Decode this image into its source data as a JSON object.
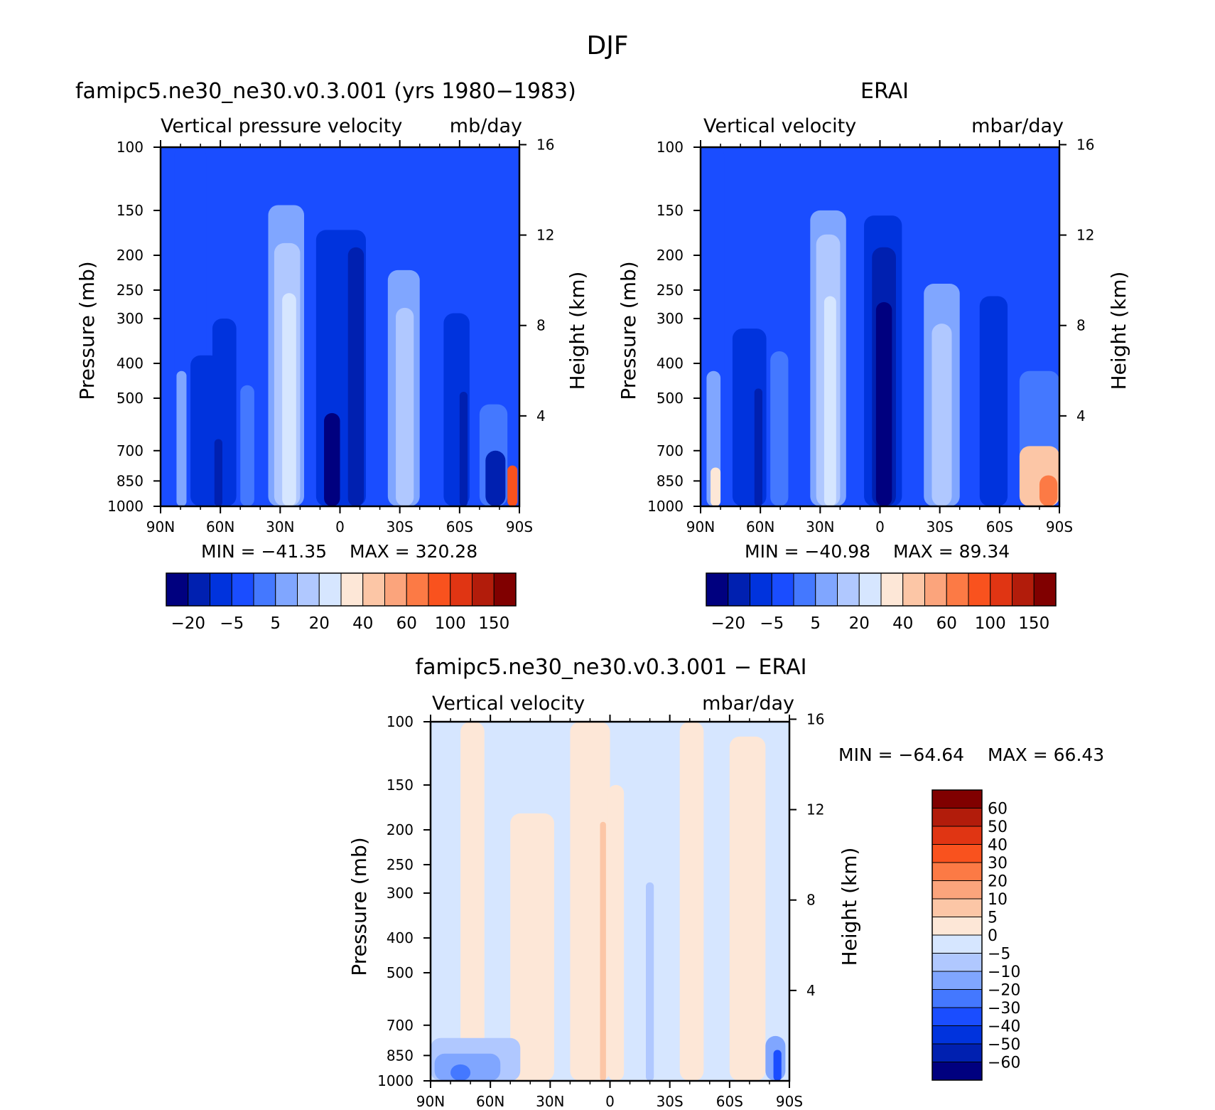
{
  "page_title": "DJF",
  "palette": {
    "blues": [
      "#00007f",
      "#0020b0",
      "#0033dd",
      "#1a4dff",
      "#4478ff",
      "#80a6ff",
      "#b0c8ff",
      "#d6e6ff"
    ],
    "reds": [
      "#fde7d7",
      "#fcc6a6",
      "#fba47c",
      "#fc7a45",
      "#f9521e",
      "#e03513",
      "#b21c0b",
      "#800000"
    ]
  },
  "chart_data": [
    {
      "type": "heatmap",
      "title": "famipc5.ne30_ne30.v0.3.001 (yrs 1980−1983)",
      "variable_label": "Vertical pressure velocity",
      "units_label": "mb/day",
      "ylabel": "Pressure (mb)",
      "y2label": "Height (km)",
      "x_ticks": [
        "90N",
        "60N",
        "30N",
        "0",
        "30S",
        "60S",
        "90S"
      ],
      "y_ticks": [
        "100",
        "150",
        "200",
        "250",
        "300",
        "400",
        "500",
        "700",
        "850",
        "1000"
      ],
      "y2_ticks": [
        "16",
        "12",
        "8",
        "4"
      ],
      "xlim": [
        "90N",
        "90S"
      ],
      "ylim": [
        1000,
        100
      ],
      "y_scale": "log",
      "min_label": "MIN = −41.35",
      "max_label": "MAX = 320.28",
      "colorbar": {
        "orientation": "horizontal",
        "labels": [
          "−20",
          "−5",
          "5",
          "20",
          "40",
          "60",
          "100",
          "150"
        ]
      },
      "bands": [
        {
          "lat": [
            90,
            83
          ],
          "p_top": 100,
          "level": 3
        },
        {
          "lat": [
            83,
            67
          ],
          "p_top": 100,
          "level": 3
        },
        {
          "lat": [
            82,
            77
          ],
          "p_top": 420,
          "level": 5
        },
        {
          "lat": [
            75,
            60
          ],
          "p_top": 380,
          "level": 2
        },
        {
          "lat": [
            64,
            52
          ],
          "p_top": 300,
          "level": 2
        },
        {
          "lat": [
            63,
            59
          ],
          "p_top": 650,
          "level": 1
        },
        {
          "lat": [
            50,
            43
          ],
          "p_top": 460,
          "level": 4
        },
        {
          "lat": [
            36,
            18
          ],
          "p_top": 145,
          "level": 5
        },
        {
          "lat": [
            33,
            20
          ],
          "p_top": 185,
          "level": 6
        },
        {
          "lat": [
            29,
            22
          ],
          "p_top": 255,
          "level": 7
        },
        {
          "lat": [
            12,
            -13
          ],
          "p_top": 170,
          "level": 2
        },
        {
          "lat": [
            -4,
            -12
          ],
          "p_top": 190,
          "level": 1
        },
        {
          "lat": [
            8,
            0
          ],
          "p_top": 550,
          "level": 0
        },
        {
          "lat": [
            -24,
            -40
          ],
          "p_top": 220,
          "level": 5
        },
        {
          "lat": [
            -28,
            -37
          ],
          "p_top": 280,
          "level": 6
        },
        {
          "lat": [
            -52,
            -65
          ],
          "p_top": 290,
          "level": 2
        },
        {
          "lat": [
            -60,
            -64
          ],
          "p_top": 480,
          "level": 1
        },
        {
          "lat": [
            -70,
            -84
          ],
          "p_top": 520,
          "level": 4
        },
        {
          "lat": [
            -73,
            -83
          ],
          "p_top": 700,
          "level": 1
        },
        {
          "lat": [
            -84,
            -89
          ],
          "p_top": 770,
          "level": 12
        }
      ]
    },
    {
      "type": "heatmap",
      "title": "ERAI",
      "variable_label": "Vertical velocity",
      "units_label": "mbar/day",
      "ylabel": "Pressure (mb)",
      "y2label": "Height (km)",
      "x_ticks": [
        "90N",
        "60N",
        "30N",
        "0",
        "30S",
        "60S",
        "90S"
      ],
      "y_ticks": [
        "100",
        "150",
        "200",
        "250",
        "300",
        "400",
        "500",
        "700",
        "850",
        "1000"
      ],
      "y2_ticks": [
        "16",
        "12",
        "8",
        "4"
      ],
      "xlim": [
        "90N",
        "90S"
      ],
      "ylim": [
        1000,
        100
      ],
      "y_scale": "log",
      "min_label": "MIN = −40.98",
      "max_label": "MAX =  89.34",
      "colorbar": {
        "orientation": "horizontal",
        "labels": [
          "−20",
          "−5",
          "5",
          "20",
          "40",
          "60",
          "100",
          "150"
        ]
      },
      "bands": [
        {
          "lat": [
            90,
            78
          ],
          "p_top": 100,
          "level": 3
        },
        {
          "lat": [
            87,
            80
          ],
          "p_top": 420,
          "level": 5
        },
        {
          "lat": [
            85,
            80
          ],
          "p_top": 780,
          "level": 8
        },
        {
          "lat": [
            74,
            57
          ],
          "p_top": 320,
          "level": 2
        },
        {
          "lat": [
            63,
            59
          ],
          "p_top": 470,
          "level": 1
        },
        {
          "lat": [
            55,
            46
          ],
          "p_top": 370,
          "level": 4
        },
        {
          "lat": [
            35,
            17
          ],
          "p_top": 150,
          "level": 5
        },
        {
          "lat": [
            32,
            20
          ],
          "p_top": 175,
          "level": 6
        },
        {
          "lat": [
            28,
            22
          ],
          "p_top": 260,
          "level": 7
        },
        {
          "lat": [
            8,
            -11
          ],
          "p_top": 155,
          "level": 2
        },
        {
          "lat": [
            4,
            -8
          ],
          "p_top": 190,
          "level": 1
        },
        {
          "lat": [
            2,
            -6
          ],
          "p_top": 270,
          "level": 0
        },
        {
          "lat": [
            -22,
            -40
          ],
          "p_top": 240,
          "level": 5
        },
        {
          "lat": [
            -26,
            -36
          ],
          "p_top": 310,
          "level": 6
        },
        {
          "lat": [
            -50,
            -64
          ],
          "p_top": 260,
          "level": 2
        },
        {
          "lat": [
            -70,
            -90
          ],
          "p_top": 420,
          "level": 4
        },
        {
          "lat": [
            -70,
            -90
          ],
          "p_top": 680,
          "level": 9
        },
        {
          "lat": [
            -80,
            -89
          ],
          "p_top": 820,
          "level": 11
        }
      ]
    },
    {
      "type": "heatmap",
      "title": "famipc5.ne30_ne30.v0.3.001 − ERAI",
      "variable_label": "Vertical velocity",
      "units_label": "mbar/day",
      "ylabel": "Pressure (mb)",
      "y2label": "Height (km)",
      "x_ticks": [
        "90N",
        "60N",
        "30N",
        "0",
        "30S",
        "60S",
        "90S"
      ],
      "y_ticks": [
        "100",
        "150",
        "200",
        "250",
        "300",
        "400",
        "500",
        "700",
        "850",
        "1000"
      ],
      "y2_ticks": [
        "16",
        "12",
        "8",
        "4"
      ],
      "xlim": [
        "90N",
        "90S"
      ],
      "ylim": [
        1000,
        100
      ],
      "y_scale": "log",
      "min_label": "MIN = −64.64",
      "max_label": "MAX =  66.43",
      "colorbar": {
        "orientation": "vertical",
        "labels": [
          "60",
          "50",
          "40",
          "30",
          "20",
          "10",
          "5",
          "0",
          "−5",
          "−10",
          "−20",
          "−30",
          "−40",
          "−50",
          "−60"
        ]
      },
      "bands": [
        {
          "lat": [
            75,
            63
          ],
          "p_top": 100,
          "level": 8
        },
        {
          "lat": [
            50,
            28
          ],
          "p_top": 180,
          "level": 8
        },
        {
          "lat": [
            20,
            0
          ],
          "p_top": 100,
          "level": 8
        },
        {
          "lat": [
            5,
            2
          ],
          "p_top": 190,
          "level": 9
        },
        {
          "lat": [
            1,
            -7
          ],
          "p_top": 150,
          "level": 8
        },
        {
          "lat": [
            -35,
            -47
          ],
          "p_top": 100,
          "level": 8
        },
        {
          "lat": [
            -60,
            -78
          ],
          "p_top": 110,
          "level": 8
        },
        {
          "lat": [
            -18,
            -22
          ],
          "p_top": 280,
          "level": 6
        },
        {
          "lat": [
            -78,
            -88
          ],
          "p_top": 750,
          "level": 5
        },
        {
          "lat": [
            -82,
            -86
          ],
          "p_top": 820,
          "level": 3
        },
        {
          "lat": [
            90,
            45
          ],
          "p_top": 760,
          "level": 6
        },
        {
          "lat": [
            88,
            55
          ],
          "p_top": 840,
          "level": 5
        },
        {
          "lat": [
            80,
            70
          ],
          "p_top": 900,
          "level": 4
        }
      ]
    }
  ]
}
